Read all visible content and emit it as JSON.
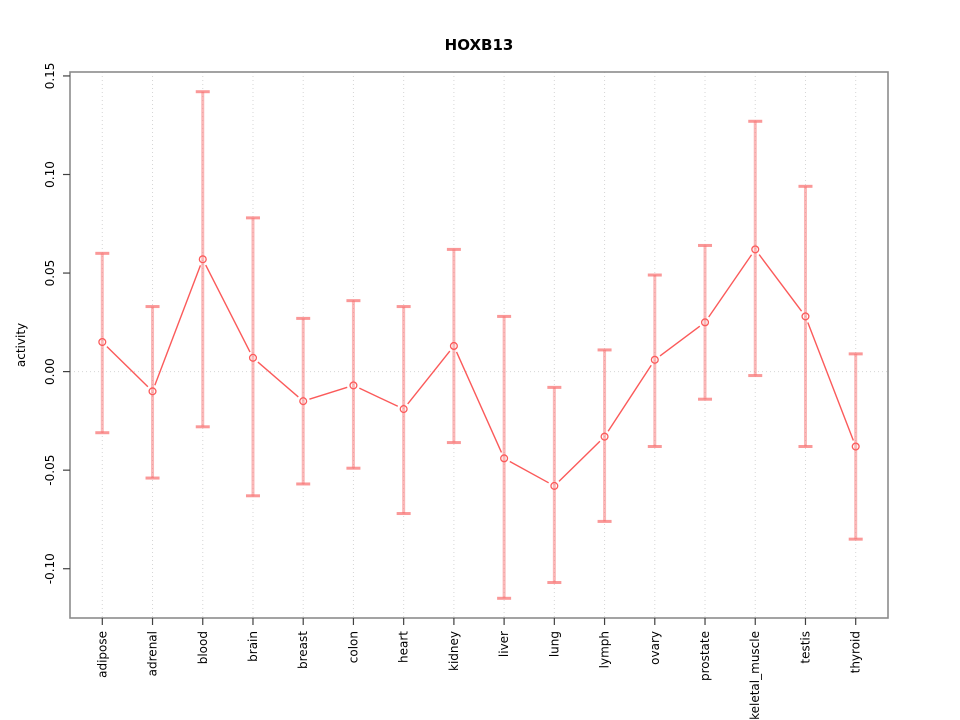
{
  "chart_data": {
    "type": "line",
    "title": "HOXB13",
    "ylabel": "activity",
    "xlabel": "",
    "categories": [
      "adipose",
      "adrenal",
      "blood",
      "brain",
      "breast",
      "colon",
      "heart",
      "kidney",
      "liver",
      "lung",
      "lymph",
      "ovary",
      "prostate",
      "skeletal_muscle",
      "testis",
      "thyroid"
    ],
    "values": [
      0.015,
      -0.01,
      0.057,
      0.007,
      -0.015,
      -0.007,
      -0.019,
      0.013,
      -0.044,
      -0.058,
      -0.033,
      0.006,
      0.025,
      0.062,
      0.028,
      -0.038
    ],
    "error_high": [
      0.06,
      0.033,
      0.142,
      0.078,
      0.027,
      0.036,
      0.033,
      0.062,
      0.028,
      -0.008,
      0.011,
      0.049,
      0.064,
      0.127,
      0.094,
      0.009
    ],
    "error_low": [
      -0.031,
      -0.054,
      -0.028,
      -0.063,
      -0.057,
      -0.049,
      -0.072,
      -0.036,
      -0.115,
      -0.107,
      -0.076,
      -0.038,
      -0.014,
      -0.002,
      -0.038,
      -0.085
    ],
    "ylim": [
      -0.125,
      0.152
    ],
    "yticks": [
      -0.1,
      -0.05,
      0.0,
      0.05,
      0.1,
      0.15
    ],
    "ytick_labels": [
      "-0.10",
      "-0.05",
      "0.00",
      "0.05",
      "0.10",
      "0.15"
    ],
    "grid": "dotted vertical gridline at each category; dotted horizontal line at y=0; no legend",
    "point_style": "open circle with vertical error bars and caps",
    "colors": {
      "line": "#fb5a5a",
      "error_bar": "#f87070",
      "grid": "#d6d6d6",
      "frame": "#8c8c8c",
      "tick": "#404040",
      "text": "#000000"
    }
  }
}
